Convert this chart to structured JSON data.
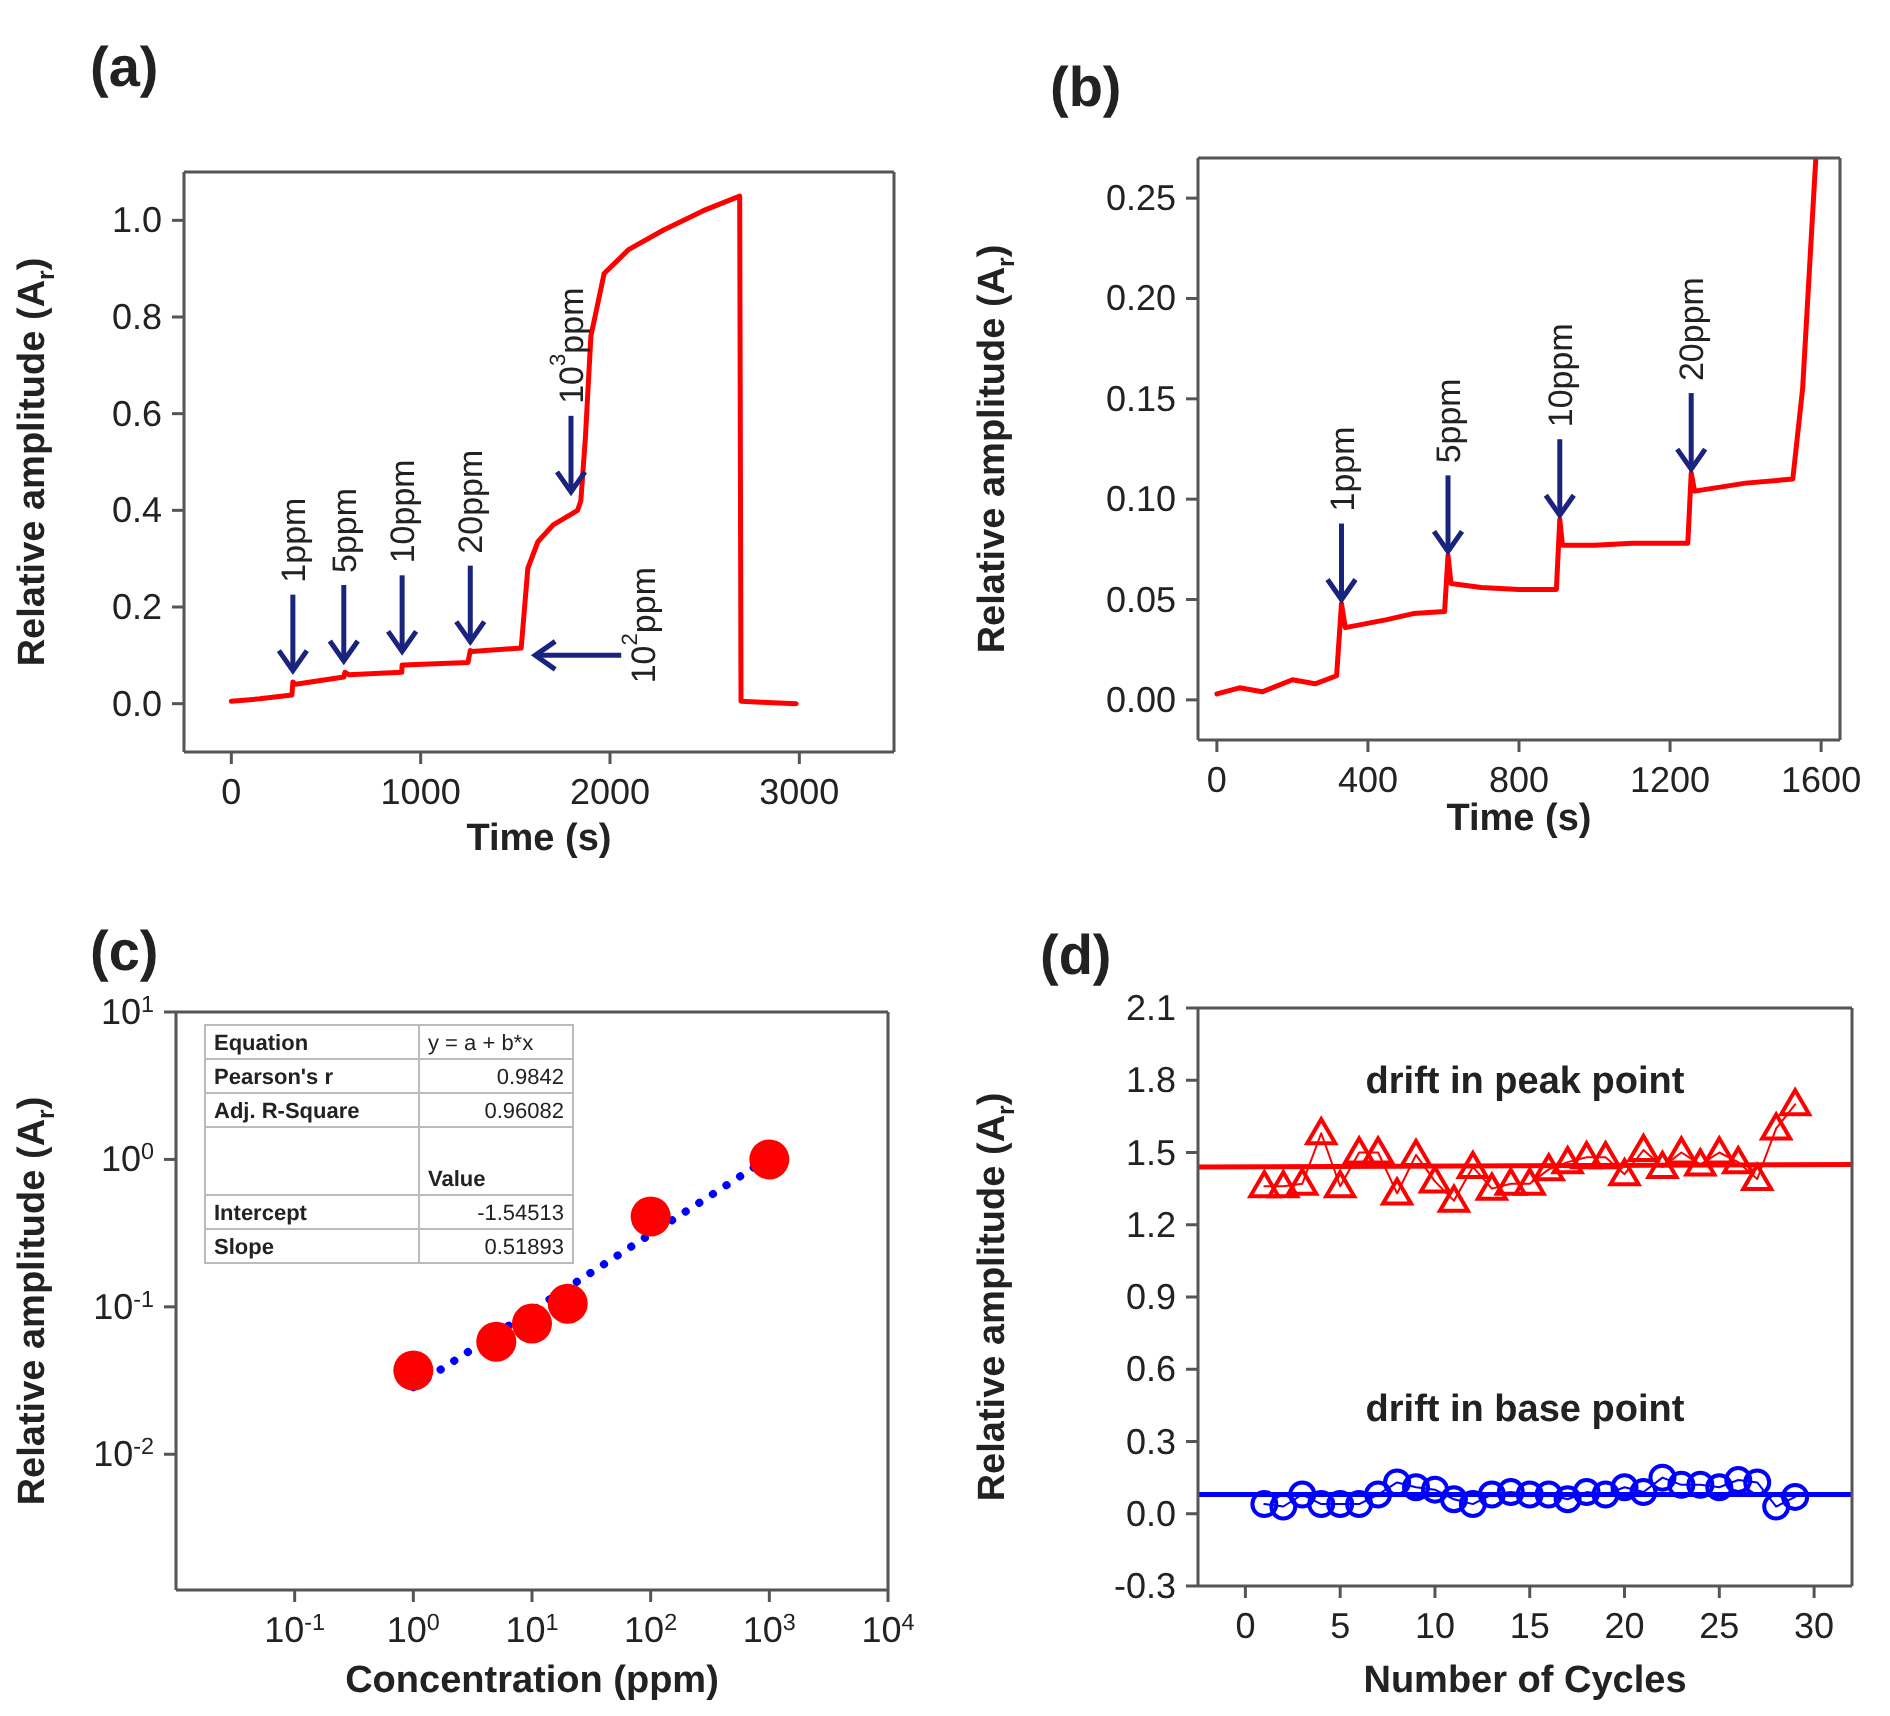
{
  "chart_data": [
    {
      "type": "line",
      "title": "(a)",
      "xlabel": "Time (s)",
      "ylabel": "Relative amplitude (A$_{r}$)",
      "xlim": [
        -250,
        3500
      ],
      "ylim": [
        -0.1,
        1.1
      ],
      "xticks": [
        0,
        1000,
        2000,
        3000
      ],
      "yticks": [
        {
          "value": 0,
          "label": "0.0"
        },
        0.2,
        0.4,
        0.6,
        0.8,
        {
          "value": 1,
          "label": "1.0"
        }
      ],
      "series": [
        {
          "color": "#ff0000",
          "x": [
            0,
            150,
            320,
            325,
            340,
            594,
            600,
            620,
            900,
            902,
            910,
            1250,
            1262,
            1270,
            1531,
            1566,
            1619,
            1700,
            1829,
            1846,
            1870,
            1899,
            1969,
            2100,
            2283,
            2493,
            2685,
            2692,
            2800,
            2983
          ],
          "values": [
            0.005,
            0.01,
            0.018,
            0.045,
            0.04,
            0.055,
            0.065,
            0.06,
            0.065,
            0.08,
            0.08,
            0.085,
            0.11,
            0.108,
            0.115,
            0.28,
            0.335,
            0.37,
            0.4,
            0.42,
            0.55,
            0.76,
            0.89,
            0.94,
            0.98,
            1.02,
            1.05,
            0.005,
            0.003,
            0.0
          ]
        }
      ],
      "annotations": [
        {
          "text": "1ppm",
          "x": 325,
          "y": 0.06
        },
        {
          "text": "5ppm",
          "x": 594,
          "y": 0.08
        },
        {
          "text": "10ppm",
          "x": 902,
          "y": 0.1
        },
        {
          "text": "20ppm",
          "x": 1262,
          "y": 0.12
        },
        {
          "text": "10$^{3}$ppm",
          "x": 1794,
          "y": 0.43
        },
        {
          "text": "10$^{2}$ppm",
          "x": 1584,
          "y": 0.1
        }
      ]
    },
    {
      "type": "line",
      "title": "(b)",
      "xlabel": "Time (s)",
      "ylabel": "Relative amplitude (A$_{r}$)",
      "xlim": [
        -50,
        1650
      ],
      "ylim": [
        -0.02,
        0.27
      ],
      "xticks": [
        0,
        400,
        800,
        1200,
        1600
      ],
      "yticks": [
        {
          "value": 0,
          "label": "0.00"
        },
        0.05,
        {
          "value": 0.1,
          "label": "0.10"
        },
        0.15,
        {
          "value": 0.2,
          "label": "0.20"
        },
        0.25
      ],
      "series": [
        {
          "color": "#ff0000",
          "x": [
            0,
            60,
            120,
            200,
            260,
            317,
            330,
            340,
            450,
            520,
            603,
            612,
            620,
            700,
            800,
            899,
            908,
            915,
            1000,
            1100,
            1247,
            1256,
            1265,
            1400,
            1525,
            1551,
            1586
          ],
          "values": [
            0.003,
            0.006,
            0.004,
            0.01,
            0.008,
            0.012,
            0.048,
            0.036,
            0.04,
            0.043,
            0.044,
            0.072,
            0.058,
            0.056,
            0.055,
            0.055,
            0.09,
            0.077,
            0.077,
            0.078,
            0.078,
            0.113,
            0.104,
            0.108,
            0.11,
            0.155,
            0.27
          ]
        }
      ],
      "annotations": [
        {
          "text": "1ppm",
          "x": 330,
          "y": 0.048
        },
        {
          "text": "5ppm",
          "x": 612,
          "y": 0.072
        },
        {
          "text": "10ppm",
          "x": 908,
          "y": 0.09
        },
        {
          "text": "20ppm",
          "x": 1256,
          "y": 0.113
        }
      ]
    },
    {
      "type": "scatter",
      "title": "(c)",
      "xlabel": "Concentration (ppm)",
      "ylabel": "Relative amplitude (A$_{r}$)",
      "log": "xy",
      "xlim": [
        0.01,
        10000
      ],
      "ylim": [
        0.0012,
        10
      ],
      "xticks": [
        {
          "value": 0.1,
          "label": "10$^{-1}$"
        },
        {
          "value": 1,
          "label": "10$^{0}$"
        },
        {
          "value": 10,
          "label": "10$^{1}$"
        },
        {
          "value": 100,
          "label": "10$^{2}$"
        },
        {
          "value": 1000,
          "label": "10$^{3}$"
        },
        {
          "value": 10000,
          "label": "10$^{4}$"
        }
      ],
      "yticks": [
        {
          "value": 0.01,
          "label": "10$^{-2}$"
        },
        {
          "value": 0.1,
          "label": "10$^{-1}$"
        },
        {
          "value": 1,
          "label": "10$^{0}$"
        },
        {
          "value": 10,
          "label": "10$^{1}$"
        }
      ],
      "marker": "circle",
      "series": [
        {
          "type": "line",
          "color": "#0000ff",
          "line_style": "dotted",
          "marker": "none",
          "x": [
            1,
            1000
          ],
          "values": [
            0.0285,
            1.03
          ]
        },
        {
          "color": "#ff0000",
          "x": [
            1,
            5,
            10,
            20,
            100,
            1000
          ],
          "values": [
            0.037,
            0.058,
            0.077,
            0.105,
            0.41,
            1.0
          ]
        }
      ],
      "annotations": [
        "Equation",
        "y = a + b*x",
        "Pearson's r",
        "0.9842",
        "Adj. R-Square",
        "0.96082",
        "Value",
        "Intercept",
        "-1.54513",
        "Slope",
        "0.51893"
      ]
    },
    {
      "type": "line",
      "title": "(d)",
      "xlabel": "Number of Cycles",
      "ylabel": "Relative amplitude (A$_{r}$)",
      "xlim": [
        -2.5,
        32
      ],
      "ylim": [
        -0.3,
        2.1
      ],
      "xticks": [
        0,
        5,
        10,
        15,
        20,
        25,
        30
      ],
      "yticks": [
        -0.3,
        {
          "value": 0,
          "label": "0.0"
        },
        0.3,
        0.6,
        0.9,
        1.2,
        1.5,
        1.8,
        2.1
      ],
      "series": [
        {
          "color": "#ff0000",
          "marker": "none",
          "x": [
            -2.5,
            32
          ],
          "values": [
            1.44,
            1.45
          ]
        },
        {
          "color": "#0000ff",
          "marker": "none",
          "x": [
            -2.5,
            32
          ],
          "values": [
            0.08,
            0.08
          ]
        },
        {
          "name": "drift in peak point",
          "color": "#ff0000",
          "marker": "triangle",
          "x": [
            1,
            2,
            3,
            4,
            5,
            6,
            7,
            8,
            9,
            10,
            11,
            12,
            13,
            14,
            15,
            16,
            17,
            18,
            19,
            20,
            21,
            22,
            23,
            24,
            25,
            26,
            27,
            28,
            29
          ],
          "values": [
            1.36,
            1.36,
            1.37,
            1.58,
            1.36,
            1.5,
            1.5,
            1.33,
            1.49,
            1.38,
            1.3,
            1.44,
            1.35,
            1.37,
            1.37,
            1.43,
            1.46,
            1.48,
            1.48,
            1.41,
            1.51,
            1.44,
            1.5,
            1.45,
            1.5,
            1.46,
            1.39,
            1.6,
            1.7
          ]
        },
        {
          "name": "drift in base point",
          "color": "#0000ff",
          "marker": "circle",
          "x": [
            1,
            2,
            3,
            4,
            5,
            6,
            7,
            8,
            9,
            10,
            11,
            12,
            13,
            14,
            15,
            16,
            17,
            18,
            19,
            20,
            21,
            22,
            23,
            24,
            25,
            26,
            27,
            28,
            29
          ],
          "values": [
            0.04,
            0.03,
            0.08,
            0.04,
            0.04,
            0.04,
            0.08,
            0.13,
            0.11,
            0.1,
            0.06,
            0.04,
            0.08,
            0.09,
            0.08,
            0.08,
            0.06,
            0.09,
            0.08,
            0.11,
            0.09,
            0.15,
            0.12,
            0.12,
            0.11,
            0.14,
            0.13,
            0.03,
            0.07
          ]
        }
      ]
    }
  ]
}
